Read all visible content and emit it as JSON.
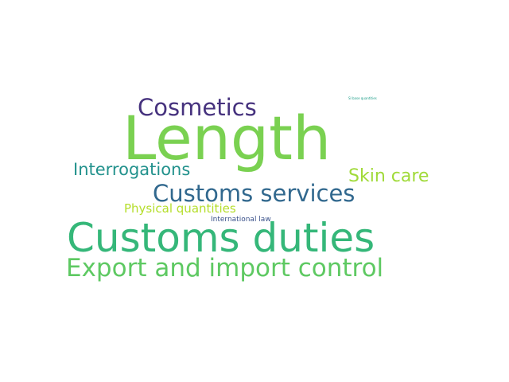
{
  "words": [
    {
      "id": "length",
      "text": "Length",
      "color": "#7ad151"
    },
    {
      "id": "customs-duties",
      "text": "Customs duties",
      "color": "#35b779"
    },
    {
      "id": "export-import-control",
      "text": "Export and import control",
      "color": "#5ec962"
    },
    {
      "id": "customs-services",
      "text": "Customs services",
      "color": "#31688e"
    },
    {
      "id": "cosmetics",
      "text": "Cosmetics",
      "color": "#46327e"
    },
    {
      "id": "interrogations",
      "text": "Interrogations",
      "color": "#21918c"
    },
    {
      "id": "skin-care",
      "text": "Skin care",
      "color": "#a0da39"
    },
    {
      "id": "physical-quantities",
      "text": "Physical quantities",
      "color": "#b5de2b"
    },
    {
      "id": "international-law",
      "text": "International law",
      "color": "#3b528b"
    },
    {
      "id": "si-base-quantities",
      "text": "SI base quantities",
      "color": "#1f9e89"
    }
  ]
}
